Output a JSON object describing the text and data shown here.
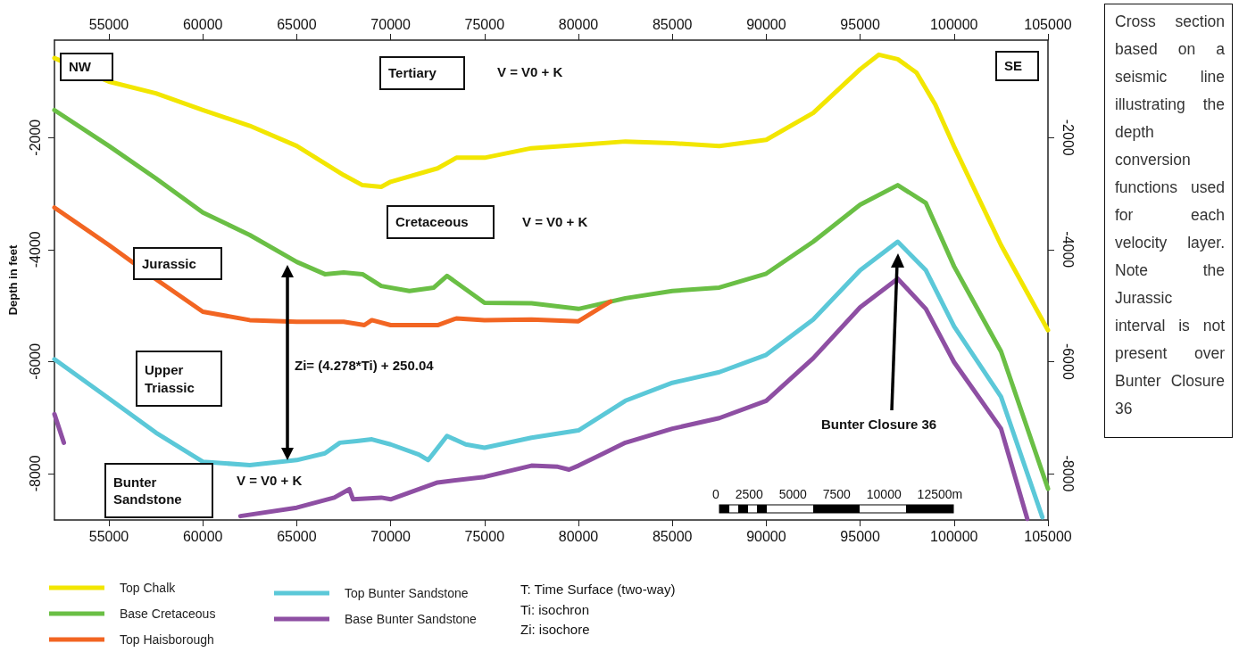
{
  "chart_data": {
    "type": "line",
    "ylabel": "Depth in feet",
    "xlim": [
      52100,
      105000
    ],
    "xticks": [
      55000,
      60000,
      65000,
      70000,
      75000,
      80000,
      85000,
      90000,
      95000,
      100000,
      105000
    ],
    "x2lim": [
      52100,
      105000
    ],
    "x2ticks": [
      55000,
      60000,
      65000,
      70000,
      75000,
      80000,
      85000,
      90000,
      95000,
      100000,
      105000
    ],
    "ylim": [
      -8830,
      -260
    ],
    "yticks": [
      -8000,
      -6000,
      -4000,
      -2000
    ],
    "y2lim": [
      -8830,
      -260
    ],
    "y2ticks": [
      -8000,
      -6000,
      -4000,
      -2000
    ],
    "legend": "bottom left",
    "marker": "none",
    "line_style": "solid",
    "series": [
      {
        "name": "Top Chalk",
        "color": "#f2e600",
        "x": [
          52100,
          55000,
          57500,
          60000,
          62500,
          65000,
          67500,
          68500,
          69500,
          70000,
          72500,
          73500,
          75000,
          77500,
          80000,
          82500,
          85000,
          87500,
          90000,
          92500,
          95000,
          96000,
          97000,
          98000,
          99000,
          100000,
          102500,
          105000
        ],
        "values": [
          -580,
          -1000,
          -1210,
          -1510,
          -1790,
          -2150,
          -2670,
          -2850,
          -2880,
          -2790,
          -2550,
          -2360,
          -2360,
          -2190,
          -2130,
          -2070,
          -2100,
          -2150,
          -2040,
          -1560,
          -780,
          -520,
          -600,
          -840,
          -1410,
          -2160,
          -3920,
          -5440
        ]
      },
      {
        "name": "Base Cretaceous",
        "color": "#6abf45",
        "x": [
          52100,
          55000,
          57500,
          60000,
          62500,
          65000,
          66500,
          67500,
          68500,
          69500,
          71000,
          72300,
          73000,
          75000,
          77500,
          80000,
          82500,
          85000,
          87500,
          90000,
          92500,
          95000,
          97000,
          98500,
          100000,
          102500,
          105000
        ],
        "values": [
          -1510,
          -2150,
          -2730,
          -3340,
          -3740,
          -4220,
          -4440,
          -4410,
          -4440,
          -4650,
          -4740,
          -4680,
          -4470,
          -4950,
          -4960,
          -5060,
          -4870,
          -4740,
          -4680,
          -4430,
          -3860,
          -3200,
          -2850,
          -3170,
          -4300,
          -5820,
          -8270
        ]
      },
      {
        "name": "Top Haisborough",
        "color": "#f26522",
        "x": [
          52100,
          55000,
          57500,
          60000,
          62500,
          65000,
          67500,
          68600,
          69000,
          70000,
          72500,
          73500,
          75000,
          77500,
          80000,
          81700
        ],
        "values": [
          -3250,
          -3920,
          -4530,
          -5110,
          -5260,
          -5290,
          -5290,
          -5350,
          -5260,
          -5350,
          -5350,
          -5230,
          -5260,
          -5250,
          -5280,
          -4930
        ]
      },
      {
        "name": "Top Bunter Sandstone",
        "color": "#5bc8d8",
        "x": [
          52100,
          55000,
          57500,
          60000,
          62500,
          65000,
          66500,
          67300,
          68200,
          69000,
          70000,
          71500,
          72000,
          73000,
          74000,
          75000,
          77500,
          80000,
          82500,
          85000,
          87500,
          90000,
          92500,
          95000,
          97000,
          98500,
          100000,
          102500,
          104700
        ],
        "values": [
          -5960,
          -6660,
          -7270,
          -7790,
          -7850,
          -7760,
          -7640,
          -7450,
          -7420,
          -7390,
          -7480,
          -7660,
          -7760,
          -7330,
          -7480,
          -7540,
          -7360,
          -7230,
          -6700,
          -6380,
          -6190,
          -5880,
          -5250,
          -4370,
          -3860,
          -4370,
          -5370,
          -6630,
          -8780
        ]
      },
      {
        "name": "Base Bunter Sandstone",
        "color": "#8e4fa3",
        "x": [
          52100,
          52600,
          55000,
          57500,
          60000,
          62000,
          65000,
          67000,
          67800,
          68000,
          69500,
          70000,
          72500,
          75000,
          77500,
          78900,
          79500,
          80000,
          82500,
          85000,
          87500,
          90000,
          92500,
          95000,
          97000,
          98500,
          100000,
          102500,
          103900
        ],
        "values": [
          -6940,
          -7450,
          null,
          null,
          null,
          -8760,
          -8610,
          -8430,
          -8280,
          -8460,
          -8430,
          -8460,
          -8160,
          -8060,
          -7860,
          -7880,
          -7930,
          -7860,
          -7450,
          -7200,
          -7010,
          -6700,
          -5940,
          -5030,
          -4520,
          -5060,
          -6010,
          -7200,
          -8810
        ]
      }
    ],
    "annotations": [
      "NW",
      "Tertiary",
      "V = V0 + K",
      "Cretaceous",
      "V = V0 + K",
      "Jurassic",
      "Upper Triassic",
      "Zi= (4.278*Ti) + 250.04",
      "Bunter Sandstone",
      "V = V0 + K",
      "SE",
      "Bunter Closure 36",
      "0 2500 5000 7500 10000 12500m",
      "T: Time Surface (two-way)",
      "Ti: isochron",
      "Zi: isochore",
      "Cross section based on a seismic line illustrating the depth conversion functions used for each velocity layer. Note the Jurassic interval is not present over Bunter Closure 36"
    ]
  }
}
